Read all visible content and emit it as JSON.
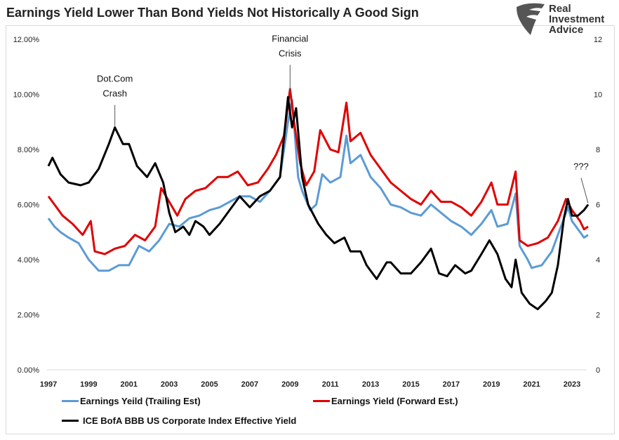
{
  "title": "Earnings Yield Lower Than Bond Yields Not Historically A Good Sign",
  "logo": {
    "text": [
      "Real",
      "Investment",
      "Advice"
    ]
  },
  "chart_data": {
    "type": "line",
    "title": "Earnings Yield Lower Than Bond Yields Not Historically A Good Sign",
    "x_ticks": [
      "1997",
      "1999",
      "2001",
      "2003",
      "2005",
      "2007",
      "2009",
      "2011",
      "2013",
      "2015",
      "2017",
      "2019",
      "2021",
      "2023"
    ],
    "xlim": [
      1997,
      2023.9
    ],
    "y_left": {
      "ticks": [
        "0.00%",
        "2.00%",
        "4.00%",
        "6.00%",
        "8.00%",
        "10.00%",
        "12.00%"
      ],
      "ylim": [
        0,
        12
      ]
    },
    "y_right": {
      "ticks": [
        "0",
        "2",
        "4",
        "6",
        "8",
        "10",
        "12"
      ],
      "ylim": [
        0,
        12
      ]
    },
    "grid": false,
    "legend_position": "bottom",
    "series": [
      {
        "name": "Earnings Yeild (Trailing Est)",
        "color": "#5b9bd5",
        "axis": "left",
        "x": [
          1997,
          1997.3,
          1997.6,
          1998,
          1998.5,
          1999,
          1999.5,
          2000,
          2000.5,
          2001,
          2001.5,
          2002,
          2002.5,
          2003,
          2003.5,
          2004,
          2004.5,
          2005,
          2005.5,
          2006,
          2006.5,
          2007,
          2007.5,
          2008,
          2008.5,
          2008.9,
          2009.1,
          2009.4,
          2009.6,
          2010,
          2010.3,
          2010.6,
          2011,
          2011.5,
          2011.8,
          2012,
          2012.5,
          2013,
          2013.5,
          2014,
          2014.5,
          2015,
          2015.5,
          2016,
          2016.5,
          2017,
          2017.5,
          2018,
          2018.5,
          2019,
          2019.3,
          2019.8,
          2020.2,
          2020.4,
          2020.8,
          2021,
          2021.5,
          2022,
          2022.5,
          2022.8,
          2023,
          2023.4,
          2023.6,
          2023.8
        ],
        "y": [
          5.5,
          5.2,
          5.0,
          4.8,
          4.6,
          4.0,
          3.6,
          3.6,
          3.8,
          3.8,
          4.5,
          4.3,
          4.7,
          5.3,
          5.2,
          5.5,
          5.6,
          5.8,
          5.9,
          6.1,
          6.3,
          6.3,
          6.1,
          6.5,
          7.0,
          9.0,
          9.8,
          7.0,
          6.5,
          5.8,
          6.0,
          7.1,
          6.8,
          7.0,
          8.5,
          7.5,
          7.8,
          7.0,
          6.6,
          6.0,
          5.9,
          5.7,
          5.6,
          6.0,
          5.7,
          5.4,
          5.2,
          4.9,
          5.3,
          5.8,
          5.2,
          5.3,
          6.4,
          4.5,
          4.0,
          3.7,
          3.8,
          4.3,
          5.3,
          5.9,
          5.4,
          5.0,
          4.8,
          4.9
        ]
      },
      {
        "name": "Earnings Yield (Forward Est.)",
        "color": "#e00000",
        "axis": "left",
        "x": [
          1997,
          1997.4,
          1997.7,
          1998.2,
          1998.7,
          1999.1,
          1999.3,
          1999.8,
          2000.3,
          2000.8,
          2001.3,
          2001.8,
          2002.3,
          2002.6,
          2003,
          2003.4,
          2003.8,
          2004.3,
          2004.8,
          2005.4,
          2005.9,
          2006.4,
          2006.9,
          2007.4,
          2007.9,
          2008.3,
          2008.7,
          2009,
          2009.2,
          2009.5,
          2009.8,
          2010.2,
          2010.5,
          2011,
          2011.4,
          2011.8,
          2012,
          2012.5,
          2013,
          2013.5,
          2014,
          2014.5,
          2015,
          2015.5,
          2016,
          2016.5,
          2017,
          2017.5,
          2018,
          2018.5,
          2019,
          2019.3,
          2019.8,
          2020.2,
          2020.4,
          2020.8,
          2021.3,
          2021.8,
          2022.3,
          2022.7,
          2023,
          2023.4,
          2023.6,
          2023.8
        ],
        "y": [
          6.3,
          5.9,
          5.6,
          5.3,
          4.9,
          5.4,
          4.3,
          4.2,
          4.4,
          4.5,
          4.9,
          4.7,
          5.2,
          6.6,
          6.1,
          5.6,
          6.2,
          6.5,
          6.6,
          7.0,
          7.0,
          7.2,
          6.7,
          6.8,
          7.3,
          7.8,
          8.5,
          10.2,
          9.0,
          7.5,
          6.7,
          7.2,
          8.7,
          8.0,
          7.9,
          9.7,
          8.3,
          8.6,
          7.8,
          7.3,
          6.8,
          6.5,
          6.2,
          6.0,
          6.5,
          6.1,
          6.1,
          5.9,
          5.6,
          6.1,
          6.8,
          6.0,
          6.0,
          7.2,
          4.7,
          4.5,
          4.6,
          4.8,
          5.4,
          6.2,
          5.8,
          5.4,
          5.1,
          5.2
        ]
      },
      {
        "name": "ICE BofA BBB US Corporate Index Effective Yield",
        "color": "#000000",
        "axis": "right",
        "x": [
          1997,
          1997.2,
          1997.6,
          1998,
          1998.6,
          1999,
          1999.5,
          2000,
          2000.3,
          2000.7,
          2001,
          2001.4,
          2001.9,
          2002.3,
          2002.7,
          2003,
          2003.3,
          2003.7,
          2004,
          2004.3,
          2004.7,
          2005,
          2005.5,
          2006,
          2006.5,
          2007,
          2007.5,
          2008,
          2008.5,
          2008.9,
          2009.1,
          2009.3,
          2009.6,
          2009.9,
          2010.4,
          2010.8,
          2011.2,
          2011.7,
          2012,
          2012.5,
          2012.8,
          2013.3,
          2013.8,
          2014,
          2014.5,
          2015,
          2015.5,
          2016,
          2016.4,
          2016.8,
          2017.2,
          2017.7,
          2018,
          2018.5,
          2018.9,
          2019.3,
          2019.7,
          2020,
          2020.2,
          2020.5,
          2020.9,
          2021.3,
          2021.7,
          2022,
          2022.3,
          2022.6,
          2022.8,
          2023,
          2023.3,
          2023.6,
          2023.8
        ],
        "y": [
          7.4,
          7.7,
          7.1,
          6.8,
          6.7,
          6.8,
          7.3,
          8.2,
          8.8,
          8.2,
          8.2,
          7.4,
          7.0,
          7.5,
          6.8,
          5.7,
          5.0,
          5.2,
          4.9,
          5.4,
          5.2,
          4.9,
          5.3,
          5.8,
          6.3,
          5.9,
          6.3,
          6.5,
          7.0,
          9.9,
          8.8,
          9.5,
          7.0,
          6.0,
          5.3,
          4.9,
          4.6,
          4.8,
          4.3,
          4.3,
          3.8,
          3.3,
          3.9,
          3.9,
          3.5,
          3.5,
          3.9,
          4.4,
          3.5,
          3.4,
          3.8,
          3.5,
          3.6,
          4.2,
          4.7,
          4.2,
          3.3,
          3.0,
          4.0,
          2.8,
          2.4,
          2.2,
          2.5,
          2.8,
          3.8,
          5.5,
          6.2,
          5.6,
          5.6,
          5.8,
          6.0
        ]
      }
    ],
    "annotations": [
      {
        "text": [
          "Dot.Com",
          "Crash"
        ],
        "x": 2000.3,
        "y": 8.8
      },
      {
        "text": [
          "Financial",
          "Crisis"
        ],
        "x": 2009.0,
        "y": 10.0
      },
      {
        "text": [
          "???"
        ],
        "x": 2023.8,
        "y": 6.0
      }
    ]
  }
}
